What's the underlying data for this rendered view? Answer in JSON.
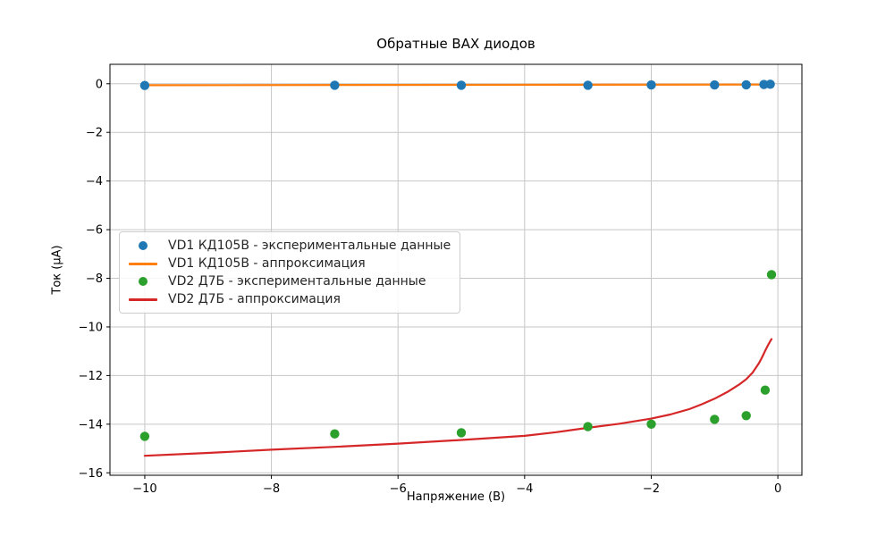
{
  "chart": {
    "title": "Обратные ВАХ диодов",
    "xlabel": "Напряжение (В)",
    "ylabel": "Ток (μА)"
  },
  "chart_data": {
    "type": "scatter+line",
    "title": "Обратные ВАХ диодов",
    "xlabel": "Напряжение (В)",
    "ylabel": "Ток (μА)",
    "xlim": [
      -10.55,
      0.38
    ],
    "ylim": [
      -16.1,
      0.8
    ],
    "x_ticks": [
      -10,
      -8,
      -6,
      -4,
      -2,
      0
    ],
    "y_ticks": [
      0,
      -2,
      -4,
      -6,
      -8,
      -10,
      -12,
      -14,
      -16
    ],
    "grid": true,
    "grid_color": "#c6c6c6",
    "legend_position": "center left",
    "series": [
      {
        "name": "VD1 КД105В - экспериментальные данные",
        "type": "scatter",
        "color": "#1f77b4",
        "x": [
          -10,
          -7,
          -5,
          -3,
          -2,
          -1,
          -0.5,
          -0.22,
          -0.12
        ],
        "y": [
          -0.07,
          -0.06,
          -0.06,
          -0.06,
          -0.05,
          -0.05,
          -0.04,
          -0.03,
          -0.02
        ]
      },
      {
        "name": "VD1 КД105В - аппроксимация",
        "type": "line",
        "color": "#ff7f0e",
        "x": [
          -10,
          -0.1
        ],
        "y": [
          -0.06,
          -0.03
        ]
      },
      {
        "name": "VD2 Д7Б - экспериментальные данные",
        "type": "scatter",
        "color": "#2ca02c",
        "x": [
          -10,
          -7,
          -5,
          -3,
          -2,
          -1,
          -0.5,
          -0.2,
          -0.1
        ],
        "y": [
          -14.5,
          -14.4,
          -14.35,
          -14.1,
          -14.0,
          -13.8,
          -13.65,
          -12.6,
          -7.85
        ]
      },
      {
        "name": "VD2 Д7Б - аппроксимация",
        "type": "line",
        "color": "#d62728",
        "x": [
          -10,
          -9,
          -8,
          -7,
          -6,
          -5,
          -4,
          -3.5,
          -3,
          -2.5,
          -2,
          -1.7,
          -1.4,
          -1.2,
          -1.0,
          -0.8,
          -0.6,
          -0.5,
          -0.4,
          -0.3,
          -0.25,
          -0.2,
          -0.15,
          -0.12,
          -0.1
        ],
        "y": [
          -15.3,
          -15.18,
          -15.05,
          -14.93,
          -14.8,
          -14.65,
          -14.48,
          -14.33,
          -14.15,
          -13.98,
          -13.77,
          -13.6,
          -13.38,
          -13.18,
          -12.95,
          -12.68,
          -12.35,
          -12.15,
          -11.88,
          -11.5,
          -11.25,
          -10.98,
          -10.72,
          -10.58,
          -10.5
        ]
      }
    ]
  }
}
